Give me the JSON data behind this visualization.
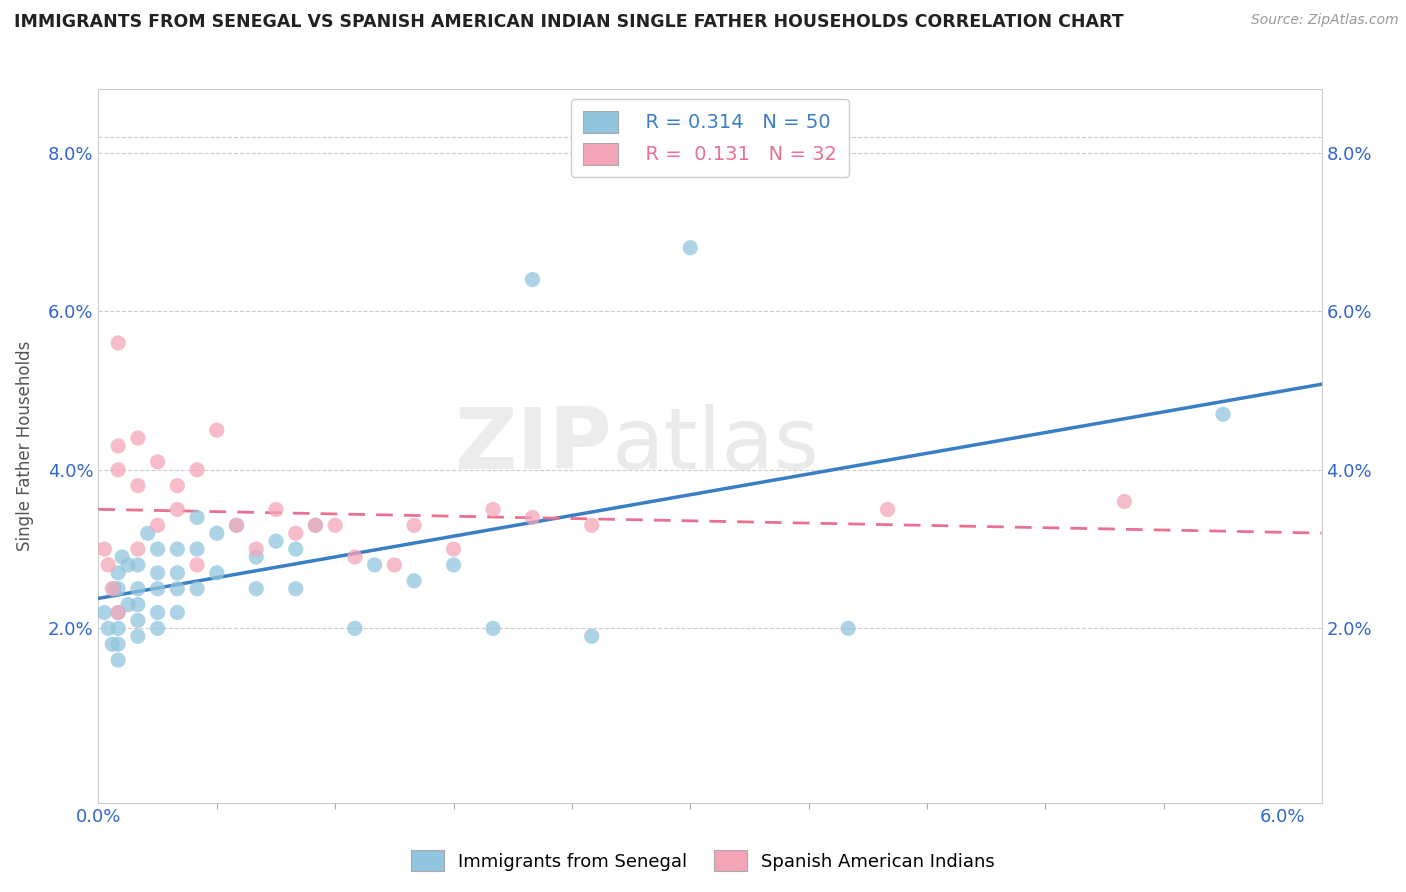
{
  "title": "IMMIGRANTS FROM SENEGAL VS SPANISH AMERICAN INDIAN SINGLE FATHER HOUSEHOLDS CORRELATION CHART",
  "source": "Source: ZipAtlas.com",
  "ylabel": "Single Father Households",
  "xlim": [
    0.0,
    0.062
  ],
  "ylim": [
    -0.002,
    0.088
  ],
  "ytick_values": [
    0.02,
    0.04,
    0.06,
    0.08
  ],
  "xtick_values": [
    0.0,
    0.06
  ],
  "series1_R": "0.314",
  "series1_N": "50",
  "series2_R": "0.131",
  "series2_N": "32",
  "series1_color": "#92C5DE",
  "series2_color": "#F4A6B8",
  "series1_line_color": "#3A7EC6",
  "series2_line_color": "#E87090",
  "watermark_zip": "ZIP",
  "watermark_atlas": "atlas",
  "legend_label1": "Immigrants from Senegal",
  "legend_label2": "Spanish American Indians",
  "text_blue": "#3A7EC6",
  "text_pink": "#E87090",
  "series1_x": [
    0.0003,
    0.0005,
    0.0007,
    0.0008,
    0.001,
    0.001,
    0.001,
    0.001,
    0.001,
    0.001,
    0.0012,
    0.0015,
    0.0015,
    0.002,
    0.002,
    0.002,
    0.002,
    0.002,
    0.0025,
    0.003,
    0.003,
    0.003,
    0.003,
    0.003,
    0.004,
    0.004,
    0.004,
    0.004,
    0.005,
    0.005,
    0.005,
    0.006,
    0.006,
    0.007,
    0.008,
    0.008,
    0.009,
    0.01,
    0.01,
    0.011,
    0.013,
    0.014,
    0.016,
    0.018,
    0.02,
    0.022,
    0.025,
    0.03,
    0.038,
    0.057
  ],
  "series1_y": [
    0.022,
    0.02,
    0.018,
    0.025,
    0.027,
    0.025,
    0.022,
    0.02,
    0.018,
    0.016,
    0.029,
    0.028,
    0.023,
    0.028,
    0.025,
    0.023,
    0.021,
    0.019,
    0.032,
    0.03,
    0.027,
    0.025,
    0.022,
    0.02,
    0.03,
    0.027,
    0.025,
    0.022,
    0.034,
    0.03,
    0.025,
    0.032,
    0.027,
    0.033,
    0.029,
    0.025,
    0.031,
    0.03,
    0.025,
    0.033,
    0.02,
    0.028,
    0.026,
    0.028,
    0.02,
    0.064,
    0.019,
    0.068,
    0.02,
    0.047
  ],
  "series2_x": [
    0.0003,
    0.0005,
    0.0007,
    0.001,
    0.001,
    0.001,
    0.001,
    0.002,
    0.002,
    0.002,
    0.003,
    0.003,
    0.004,
    0.004,
    0.005,
    0.005,
    0.006,
    0.007,
    0.008,
    0.009,
    0.01,
    0.011,
    0.012,
    0.013,
    0.015,
    0.016,
    0.018,
    0.02,
    0.022,
    0.025,
    0.04,
    0.052
  ],
  "series2_y": [
    0.03,
    0.028,
    0.025,
    0.056,
    0.043,
    0.04,
    0.022,
    0.044,
    0.038,
    0.03,
    0.041,
    0.033,
    0.038,
    0.035,
    0.04,
    0.028,
    0.045,
    0.033,
    0.03,
    0.035,
    0.032,
    0.033,
    0.033,
    0.029,
    0.028,
    0.033,
    0.03,
    0.035,
    0.034,
    0.033,
    0.035,
    0.036
  ]
}
